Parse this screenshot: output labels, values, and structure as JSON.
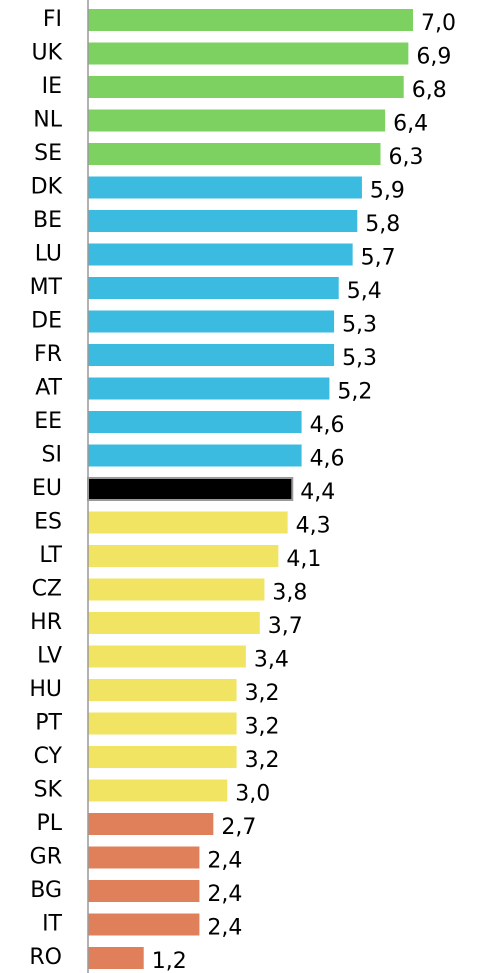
{
  "chart_data": {
    "type": "bar",
    "orientation": "horizontal",
    "categories": [
      "FI",
      "UK",
      "IE",
      "NL",
      "SE",
      "DK",
      "BE",
      "LU",
      "MT",
      "DE",
      "FR",
      "AT",
      "EE",
      "SI",
      "EU",
      "ES",
      "LT",
      "CZ",
      "HR",
      "LV",
      "HU",
      "PT",
      "CY",
      "SK",
      "PL",
      "GR",
      "BG",
      "IT",
      "RO"
    ],
    "values": [
      7.0,
      6.9,
      6.8,
      6.4,
      6.3,
      5.9,
      5.8,
      5.7,
      5.4,
      5.3,
      5.3,
      5.2,
      4.6,
      4.6,
      4.4,
      4.3,
      4.1,
      3.8,
      3.7,
      3.4,
      3.2,
      3.2,
      3.2,
      3.0,
      2.7,
      2.4,
      2.4,
      2.4,
      1.2
    ],
    "value_labels": [
      "7,0",
      "6,9",
      "6,8",
      "6,4",
      "6,3",
      "5,9",
      "5,8",
      "5,7",
      "5,4",
      "5,3",
      "5,3",
      "5,2",
      "4,6",
      "4,6",
      "4,4",
      "4,3",
      "4,1",
      "3,8",
      "3,7",
      "3,4",
      "3,2",
      "3,2",
      "3,2",
      "3,0",
      "2,7",
      "2,4",
      "2,4",
      "2,4",
      "1,2"
    ],
    "colors": [
      "#7dd160",
      "#7dd160",
      "#7dd160",
      "#7dd160",
      "#7dd160",
      "#3bbbe0",
      "#3bbbe0",
      "#3bbbe0",
      "#3bbbe0",
      "#3bbbe0",
      "#3bbbe0",
      "#3bbbe0",
      "#3bbbe0",
      "#3bbbe0",
      "#000000",
      "#f0e462",
      "#f0e462",
      "#f0e462",
      "#f0e462",
      "#f0e462",
      "#f0e462",
      "#f0e462",
      "#f0e462",
      "#f0e462",
      "#e0805a",
      "#e0805a",
      "#e0805a",
      "#e0805a",
      "#e0805a"
    ],
    "xlim": [
      0,
      7
    ]
  }
}
